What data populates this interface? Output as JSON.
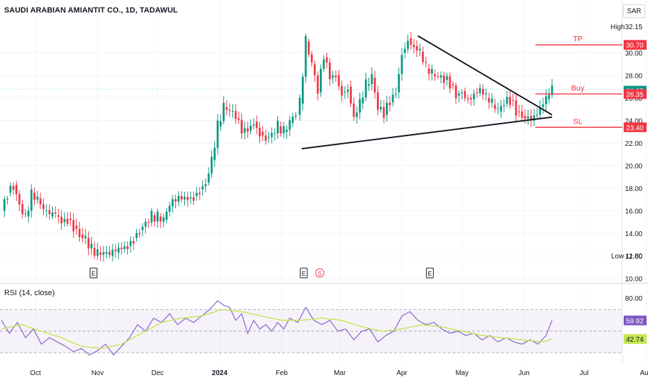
{
  "header": {
    "title": "SAUDI ARABIAN AMIANTIT CO., 1D, TADAWUL",
    "currency": "SAR"
  },
  "rsi_title": "RSI (14, close)",
  "chart_data": [
    {
      "type": "candlestick",
      "title": "SAUDI ARABIAN AMIANTIT CO., 1D, TADAWUL",
      "ylim": [
        10.0,
        32.5
      ],
      "y_ticks": [
        "10.00",
        "12.00",
        "14.00",
        "16.00",
        "18.00",
        "20.00",
        "22.00",
        "24.00",
        "26.00",
        "28.00",
        "30.00"
      ],
      "x_ticks": [
        {
          "label": "Oct",
          "day": 17
        },
        {
          "label": "Nov",
          "day": 48
        },
        {
          "label": "Dec",
          "day": 78
        },
        {
          "label": "2024",
          "day": 109
        },
        {
          "label": "Feb",
          "day": 140
        },
        {
          "label": "Mar",
          "day": 169
        },
        {
          "label": "Apr",
          "day": 200
        },
        {
          "label": "May",
          "day": 230
        },
        {
          "label": "Jun",
          "day": 261
        },
        {
          "label": "Jul",
          "day": 291
        },
        {
          "label": "Aug",
          "day": 322
        }
      ],
      "close_series": [
        [
          0,
          16.0
        ],
        [
          3,
          17.6
        ],
        [
          6,
          18.3
        ],
        [
          9,
          16.6
        ],
        [
          12,
          15.5
        ],
        [
          15,
          17.6
        ],
        [
          18,
          17.1
        ],
        [
          21,
          16.0
        ],
        [
          24,
          15.5
        ],
        [
          27,
          15.6
        ],
        [
          30,
          15.0
        ],
        [
          33,
          15.3
        ],
        [
          36,
          14.7
        ],
        [
          39,
          13.9
        ],
        [
          42,
          13.6
        ],
        [
          45,
          12.7
        ],
        [
          48,
          12.3
        ],
        [
          51,
          12.2
        ],
        [
          54,
          12.0
        ],
        [
          57,
          12.3
        ],
        [
          60,
          12.6
        ],
        [
          63,
          12.9
        ],
        [
          66,
          13.6
        ],
        [
          69,
          14.3
        ],
        [
          72,
          15.0
        ],
        [
          75,
          15.6
        ],
        [
          78,
          15.5
        ],
        [
          81,
          15.2
        ],
        [
          84,
          16.4
        ],
        [
          87,
          16.8
        ],
        [
          90,
          17.0
        ],
        [
          93,
          17.1
        ],
        [
          96,
          17.3
        ],
        [
          99,
          17.9
        ],
        [
          102,
          18.5
        ],
        [
          105,
          20.5
        ],
        [
          108,
          23.5
        ],
        [
          111,
          25.2
        ],
        [
          114,
          24.8
        ],
        [
          117,
          24.2
        ],
        [
          120,
          22.9
        ],
        [
          123,
          23.1
        ],
        [
          126,
          23.9
        ],
        [
          129,
          23.0
        ],
        [
          132,
          22.5
        ],
        [
          135,
          22.8
        ],
        [
          138,
          23.5
        ],
        [
          141,
          23.0
        ],
        [
          144,
          23.8
        ],
        [
          147,
          24.5
        ],
        [
          149,
          25.5
        ],
        [
          152,
          31.0
        ],
        [
          155,
          29.0
        ],
        [
          158,
          26.5
        ],
        [
          161,
          29.6
        ],
        [
          164,
          27.8
        ],
        [
          167,
          28.0
        ],
        [
          170,
          26.5
        ],
        [
          173,
          27.0
        ],
        [
          176,
          24.3
        ],
        [
          179,
          25.5
        ],
        [
          182,
          27.1
        ],
        [
          185,
          27.8
        ],
        [
          188,
          25.0
        ],
        [
          191,
          24.5
        ],
        [
          194,
          25.6
        ],
        [
          197,
          26.5
        ],
        [
          200,
          30.0
        ],
        [
          203,
          31.3
        ],
        [
          206,
          30.6
        ],
        [
          209,
          30.1
        ],
        [
          212,
          28.6
        ],
        [
          215,
          28.1
        ],
        [
          218,
          27.8
        ],
        [
          221,
          27.6
        ],
        [
          224,
          27.2
        ],
        [
          227,
          26.2
        ],
        [
          230,
          26.6
        ],
        [
          233,
          26.0
        ],
        [
          236,
          26.5
        ],
        [
          239,
          26.8
        ],
        [
          242,
          26.0
        ],
        [
          245,
          25.4
        ],
        [
          248,
          24.8
        ],
        [
          251,
          25.5
        ],
        [
          254,
          25.8
        ],
        [
          257,
          24.8
        ],
        [
          260,
          24.4
        ],
        [
          263,
          24.4
        ],
        [
          266,
          24.5
        ],
        [
          269,
          25.2
        ],
        [
          272,
          25.9
        ],
        [
          275,
          26.65
        ]
      ],
      "annotations": [
        {
          "label": "TP",
          "value": 30.7,
          "color": "#f23645"
        },
        {
          "label": "Buy",
          "value": 26.35,
          "color": "#f23645"
        },
        {
          "label": "SL",
          "value": 23.4,
          "color": "#f23645"
        }
      ],
      "price_badges": [
        {
          "value": "30.70",
          "price": 30.7,
          "color": "#f23645"
        },
        {
          "value": "26.65",
          "price": 26.65,
          "color": "#089981"
        },
        {
          "value": "26.35",
          "price": 26.35,
          "color": "#f23645"
        },
        {
          "value": "23.40",
          "price": 23.4,
          "color": "#f23645"
        }
      ],
      "high": {
        "label": "High",
        "value": "32.15"
      },
      "low": {
        "label": "Low",
        "value": "11.80"
      },
      "event_markers": [
        {
          "label": "E",
          "day": 46
        },
        {
          "label": "E",
          "day": 151
        },
        {
          "label": "S",
          "day": 159,
          "color": "#f23645"
        },
        {
          "label": "E",
          "day": 214
        }
      ],
      "trendlines": [
        {
          "from": [
            150,
            21.5
          ],
          "to": [
            275,
            24.3
          ]
        },
        {
          "from": [
            208,
            31.5
          ],
          "to": [
            275,
            24.5
          ]
        }
      ]
    },
    {
      "type": "line",
      "title": "RSI (14, close)",
      "ylim": [
        20,
        90
      ],
      "y_ticks": [
        "80.00"
      ],
      "bands": [
        30,
        50,
        70
      ],
      "last_values": [
        {
          "value": "59.92",
          "color": "#7e57c2"
        },
        {
          "value": "42.74",
          "color": "#c5e64f"
        }
      ],
      "series": [
        {
          "values": [
            [
              0,
              60
            ],
            [
              4,
              48
            ],
            [
              8,
              58
            ],
            [
              12,
              44
            ],
            [
              16,
              52
            ],
            [
              20,
              38
            ],
            [
              24,
              44
            ],
            [
              28,
              40
            ],
            [
              32,
              36
            ],
            [
              36,
              31
            ],
            [
              40,
              34
            ],
            [
              44,
              28
            ],
            [
              48,
              32
            ],
            [
              52,
              38
            ],
            [
              56,
              28
            ],
            [
              60,
              36
            ],
            [
              64,
              44
            ],
            [
              68,
              56
            ],
            [
              72,
              50
            ],
            [
              76,
              62
            ],
            [
              80,
              58
            ],
            [
              84,
              66
            ],
            [
              88,
              56
            ],
            [
              92,
              62
            ],
            [
              96,
              58
            ],
            [
              100,
              64
            ],
            [
              104,
              70
            ],
            [
              108,
              78
            ],
            [
              111,
              74
            ],
            [
              114,
              72
            ],
            [
              117,
              60
            ],
            [
              120,
              66
            ],
            [
              123,
              48
            ],
            [
              126,
              60
            ],
            [
              129,
              52
            ],
            [
              132,
              56
            ],
            [
              135,
              50
            ],
            [
              138,
              58
            ],
            [
              141,
              52
            ],
            [
              144,
              62
            ],
            [
              148,
              58
            ],
            [
              152,
              72
            ],
            [
              156,
              60
            ],
            [
              160,
              56
            ],
            [
              164,
              60
            ],
            [
              168,
              50
            ],
            [
              172,
              52
            ],
            [
              176,
              42
            ],
            [
              180,
              50
            ],
            [
              184,
              52
            ],
            [
              188,
              40
            ],
            [
              192,
              46
            ],
            [
              196,
              50
            ],
            [
              200,
              64
            ],
            [
              204,
              68
            ],
            [
              208,
              60
            ],
            [
              212,
              56
            ],
            [
              216,
              58
            ],
            [
              220,
              52
            ],
            [
              224,
              48
            ],
            [
              228,
              50
            ],
            [
              232,
              46
            ],
            [
              236,
              48
            ],
            [
              240,
              42
            ],
            [
              244,
              46
            ],
            [
              248,
              40
            ],
            [
              252,
              44
            ],
            [
              256,
              40
            ],
            [
              260,
              38
            ],
            [
              264,
              42
            ],
            [
              268,
              38
            ],
            [
              272,
              46
            ],
            [
              275,
              59.92
            ]
          ]
        },
        {
          "values": [
            [
              0,
              52
            ],
            [
              10,
              56
            ],
            [
              20,
              50
            ],
            [
              30,
              44
            ],
            [
              40,
              36
            ],
            [
              50,
              34
            ],
            [
              60,
              38
            ],
            [
              70,
              48
            ],
            [
              80,
              58
            ],
            [
              90,
              62
            ],
            [
              100,
              64
            ],
            [
              110,
              70
            ],
            [
              120,
              68
            ],
            [
              130,
              64
            ],
            [
              140,
              60
            ],
            [
              150,
              60
            ],
            [
              160,
              62
            ],
            [
              170,
              60
            ],
            [
              180,
              54
            ],
            [
              190,
              50
            ],
            [
              200,
              52
            ],
            [
              210,
              56
            ],
            [
              220,
              54
            ],
            [
              230,
              50
            ],
            [
              240,
              46
            ],
            [
              250,
              44
            ],
            [
              260,
              42
            ],
            [
              270,
              40
            ],
            [
              275,
              42.74
            ]
          ]
        }
      ]
    }
  ]
}
